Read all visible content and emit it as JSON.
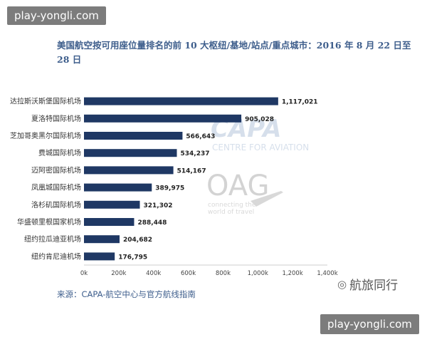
{
  "watermark_top": "play-yongli.com",
  "watermark_bottom": "play-yongli.com",
  "title": "美国航空按可用座位量排名的前 10 大枢纽/基地/站点/重点城市：2016 年 8 月 22 日至 28 日",
  "source": "来源：CAPA-航空中心与官方航线指南",
  "brand": {
    "icon": "wechat-icon",
    "text": "航旅同行"
  },
  "logos": {
    "capa": "CAPA",
    "capa_sub": "CENTRE FOR AVIATION",
    "oag": "OAG",
    "oag_sub1": "connecting the",
    "oag_sub2": "world of travel"
  },
  "chart_data": {
    "type": "bar",
    "orientation": "horizontal",
    "categories": [
      "达拉斯沃斯堡国际机场",
      "夏洛特国际机场",
      "芝加哥奥黑尔国际机场",
      "费城国际机场",
      "迈阿密国际机场",
      "凤凰城国际机场",
      "洛杉矶国际机场",
      "华盛顿里根国家机场",
      "纽约拉瓜迪亚机场",
      "纽约肯尼迪机场"
    ],
    "values": [
      1117021,
      905028,
      566643,
      534237,
      514167,
      389975,
      321302,
      288448,
      204682,
      176795
    ],
    "value_labels": [
      "1,117,021",
      "905,028",
      "566,643",
      "534,237",
      "514,167",
      "389,975",
      "321,302",
      "288,448",
      "204,682",
      "176,795"
    ],
    "x_ticks": [
      "0k",
      "200k",
      "400k",
      "600k",
      "800k",
      "1,000k",
      "1,200k",
      "1,400k"
    ],
    "xlim": [
      0,
      1400000
    ],
    "bar_color": "#1F3864",
    "grid": false
  }
}
